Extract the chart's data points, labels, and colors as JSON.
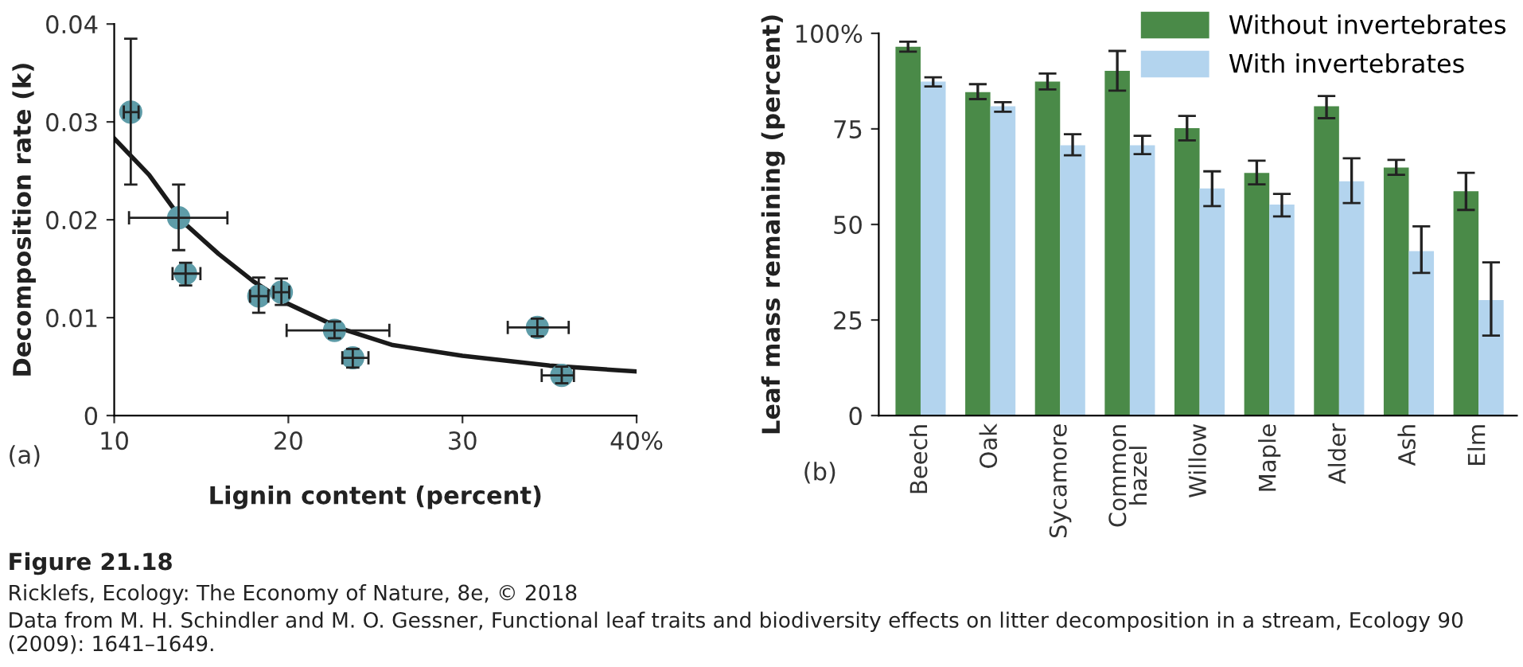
{
  "chart_data": [
    {
      "type": "scatter",
      "xlabel": "Lignin content (percent)",
      "ylabel": "Decomposition rate (k)",
      "xlim": [
        10,
        40
      ],
      "xticks": [
        10,
        20,
        30,
        {
          "value": 40,
          "label": "40%"
        }
      ],
      "ylim": [
        0,
        0.04
      ],
      "yticks": [
        0,
        0.01,
        0.02,
        0.03,
        0.04
      ],
      "series": [
        {
          "type": "scatter",
          "color": "#5e9ca8",
          "marker": "circle",
          "x": [
            10.95,
            13.7,
            14.1,
            18.3,
            19.6,
            22.65,
            23.7,
            34.3,
            35.7
          ],
          "values": [
            0.031,
            0.0202,
            0.0145,
            0.0122,
            0.0126,
            0.0087,
            0.0059,
            0.009,
            0.0041
          ],
          "errors": [
            [
              0.0236,
              0.0385
            ],
            [
              0.0169,
              0.0236
            ],
            [
              0.0133,
              0.0156
            ],
            [
              0.0105,
              0.0141
            ],
            [
              0.0113,
              0.014
            ],
            [
              0.0079,
              0.0096
            ],
            [
              0.0049,
              0.0068
            ],
            [
              0.0081,
              0.0099
            ],
            [
              0.0033,
              0.005
            ]
          ],
          "xerrors": [
            [
              10.55,
              11.4
            ],
            [
              10.85,
              16.5
            ],
            [
              13.35,
              14.95
            ],
            [
              17.8,
              18.85
            ],
            [
              19.15,
              20.05
            ],
            [
              19.9,
              25.8
            ],
            [
              23.1,
              24.6
            ],
            [
              32.6,
              36.1
            ],
            [
              34.55,
              36.4
            ]
          ]
        },
        {
          "type": "line",
          "color": "#1a1a1a",
          "line_style": "solid",
          "x": [
            10,
            12,
            14,
            16,
            18,
            20,
            23,
            26,
            30,
            35,
            40
          ],
          "values": [
            0.0283,
            0.0246,
            0.0197,
            0.0165,
            0.0137,
            0.0114,
            0.0089,
            0.0072,
            0.0061,
            0.0051,
            0.0045
          ]
        }
      ],
      "annotations": [
        "(a)",
        "Figure 21.18",
        "Ricklefs, Ecology: The Economy of Nature, 8e, © 2018",
        "Data from M. H. Schindler and M. O. Gessner, Functional leaf traits and biodiversity effects on litter decomposition in a stream, Ecology 90 (2009): 1641–1649."
      ]
    },
    {
      "type": "bar",
      "ylabel": "Leaf mass remaining (percent)",
      "categories": [
        "Beech",
        "Oak",
        "Sycamore",
        "Common\nhazel",
        "Willow",
        "Maple",
        "Alder",
        "Ash",
        "Elm"
      ],
      "ylim": [
        0,
        100
      ],
      "yticks": [
        0,
        25,
        50,
        75,
        {
          "value": 100,
          "label": "100%"
        }
      ],
      "legend": "top right",
      "series": [
        {
          "name": "Without invertebrates",
          "color": "#4a8a48",
          "values": [
            96.5,
            84.6,
            87.4,
            90.2,
            75.2,
            63.5,
            80.9,
            64.9,
            58.7
          ],
          "errors": [
            [
              95.2,
              97.8
            ],
            [
              82.8,
              86.7
            ],
            [
              85.3,
              89.5
            ],
            [
              85.0,
              95.4
            ],
            [
              72.0,
              78.4
            ],
            [
              60.5,
              66.7
            ],
            [
              77.8,
              83.6
            ],
            [
              63.0,
              66.9
            ],
            [
              53.8,
              63.5
            ]
          ]
        },
        {
          "name": "With invertebrates",
          "color": "#b3d4ee",
          "values": [
            87.4,
            80.9,
            70.7,
            70.7,
            59.4,
            55.2,
            61.3,
            43.0,
            30.2
          ],
          "errors": [
            [
              86.1,
              88.5
            ],
            [
              79.5,
              82.0
            ],
            [
              68.1,
              73.6
            ],
            [
              68.4,
              73.2
            ],
            [
              54.8,
              63.9
            ],
            [
              52.1,
              58.0
            ],
            [
              55.6,
              67.3
            ],
            [
              37.3,
              49.5
            ],
            [
              20.9,
              40.1
            ]
          ]
        }
      ],
      "annotations": [
        "(b)"
      ]
    }
  ]
}
